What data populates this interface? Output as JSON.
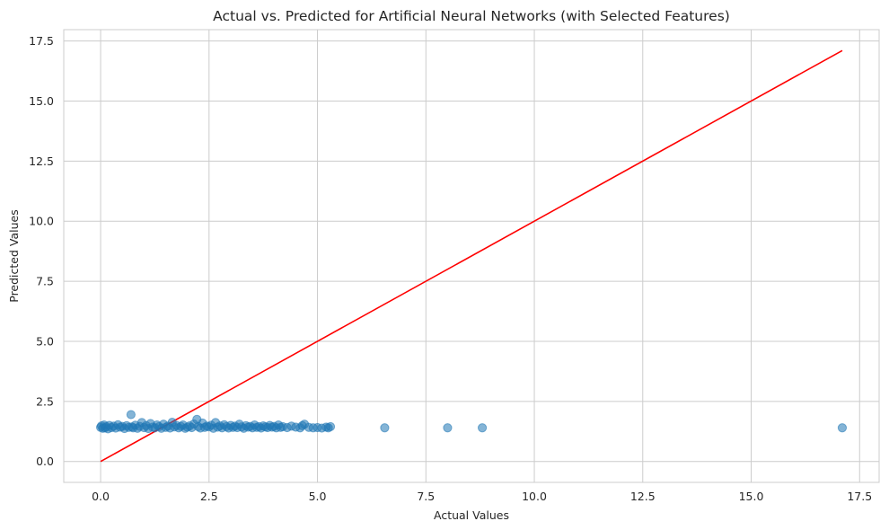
{
  "chart_data": {
    "type": "scatter",
    "title": "Actual vs. Predicted for Artificial Neural Networks (with Selected Features)",
    "xlabel": "Actual Values",
    "ylabel": "Predicted Values",
    "xlim": [
      -0.85,
      17.95
    ],
    "ylim": [
      -0.87,
      17.97
    ],
    "xticks": [
      0.0,
      2.5,
      5.0,
      7.5,
      10.0,
      12.5,
      15.0,
      17.5
    ],
    "xtick_labels": [
      "0.0",
      "2.5",
      "5.0",
      "7.5",
      "10.0",
      "12.5",
      "15.0",
      "17.5"
    ],
    "yticks": [
      0.0,
      2.5,
      5.0,
      7.5,
      10.0,
      12.5,
      15.0,
      17.5
    ],
    "ytick_labels": [
      "0.0",
      "2.5",
      "5.0",
      "7.5",
      "10.0",
      "12.5",
      "15.0",
      "17.5"
    ],
    "grid": true,
    "legend": "none",
    "series": [
      {
        "kind": "scatter",
        "color": "#1f77b4",
        "opacity": 0.55,
        "x": [
          0.0,
          0.02,
          0.05,
          0.08,
          0.1,
          0.13,
          0.17,
          0.2,
          0.25,
          0.3,
          0.35,
          0.4,
          0.45,
          0.5,
          0.55,
          0.6,
          0.65,
          0.7,
          0.72,
          0.75,
          0.8,
          0.85,
          0.9,
          0.95,
          1.0,
          1.05,
          1.1,
          1.15,
          1.2,
          1.25,
          1.3,
          1.35,
          1.4,
          1.45,
          1.5,
          1.55,
          1.6,
          1.65,
          1.7,
          1.75,
          1.8,
          1.85,
          1.9,
          1.95,
          2.0,
          2.05,
          2.1,
          2.15,
          2.22,
          2.25,
          2.3,
          2.35,
          2.4,
          2.45,
          2.5,
          2.55,
          2.6,
          2.65,
          2.7,
          2.75,
          2.8,
          2.85,
          2.9,
          2.95,
          3.0,
          3.05,
          3.1,
          3.15,
          3.2,
          3.25,
          3.3,
          3.35,
          3.4,
          3.45,
          3.5,
          3.55,
          3.6,
          3.65,
          3.7,
          3.75,
          3.8,
          3.85,
          3.9,
          3.95,
          4.0,
          4.05,
          4.1,
          4.15,
          4.2,
          4.3,
          4.4,
          4.5,
          4.6,
          4.65,
          4.7,
          4.8,
          4.9,
          5.0,
          5.1,
          5.2,
          5.25,
          5.3,
          6.55,
          8.0,
          8.8,
          17.1
        ],
        "y": [
          1.42,
          1.48,
          1.38,
          1.52,
          1.4,
          1.45,
          1.36,
          1.5,
          1.41,
          1.47,
          1.39,
          1.53,
          1.43,
          1.46,
          1.37,
          1.49,
          1.42,
          1.95,
          1.44,
          1.4,
          1.51,
          1.38,
          1.46,
          1.62,
          1.41,
          1.49,
          1.37,
          1.58,
          1.43,
          1.4,
          1.52,
          1.45,
          1.38,
          1.55,
          1.42,
          1.47,
          1.39,
          1.63,
          1.44,
          1.5,
          1.4,
          1.46,
          1.52,
          1.38,
          1.43,
          1.48,
          1.41,
          1.56,
          1.75,
          1.45,
          1.39,
          1.6,
          1.42,
          1.47,
          1.44,
          1.51,
          1.38,
          1.62,
          1.43,
          1.48,
          1.4,
          1.53,
          1.45,
          1.39,
          1.5,
          1.42,
          1.47,
          1.41,
          1.55,
          1.44,
          1.38,
          1.49,
          1.43,
          1.46,
          1.4,
          1.52,
          1.42,
          1.45,
          1.39,
          1.48,
          1.44,
          1.41,
          1.5,
          1.43,
          1.46,
          1.4,
          1.52,
          1.42,
          1.45,
          1.41,
          1.47,
          1.43,
          1.4,
          1.49,
          1.55,
          1.42,
          1.4,
          1.41,
          1.39,
          1.43,
          1.4,
          1.45,
          1.4,
          1.4,
          1.4,
          1.4
        ]
      },
      {
        "kind": "line",
        "color": "#ff0000",
        "x": [
          0.0,
          17.1
        ],
        "y": [
          0.0,
          17.1
        ]
      }
    ]
  }
}
